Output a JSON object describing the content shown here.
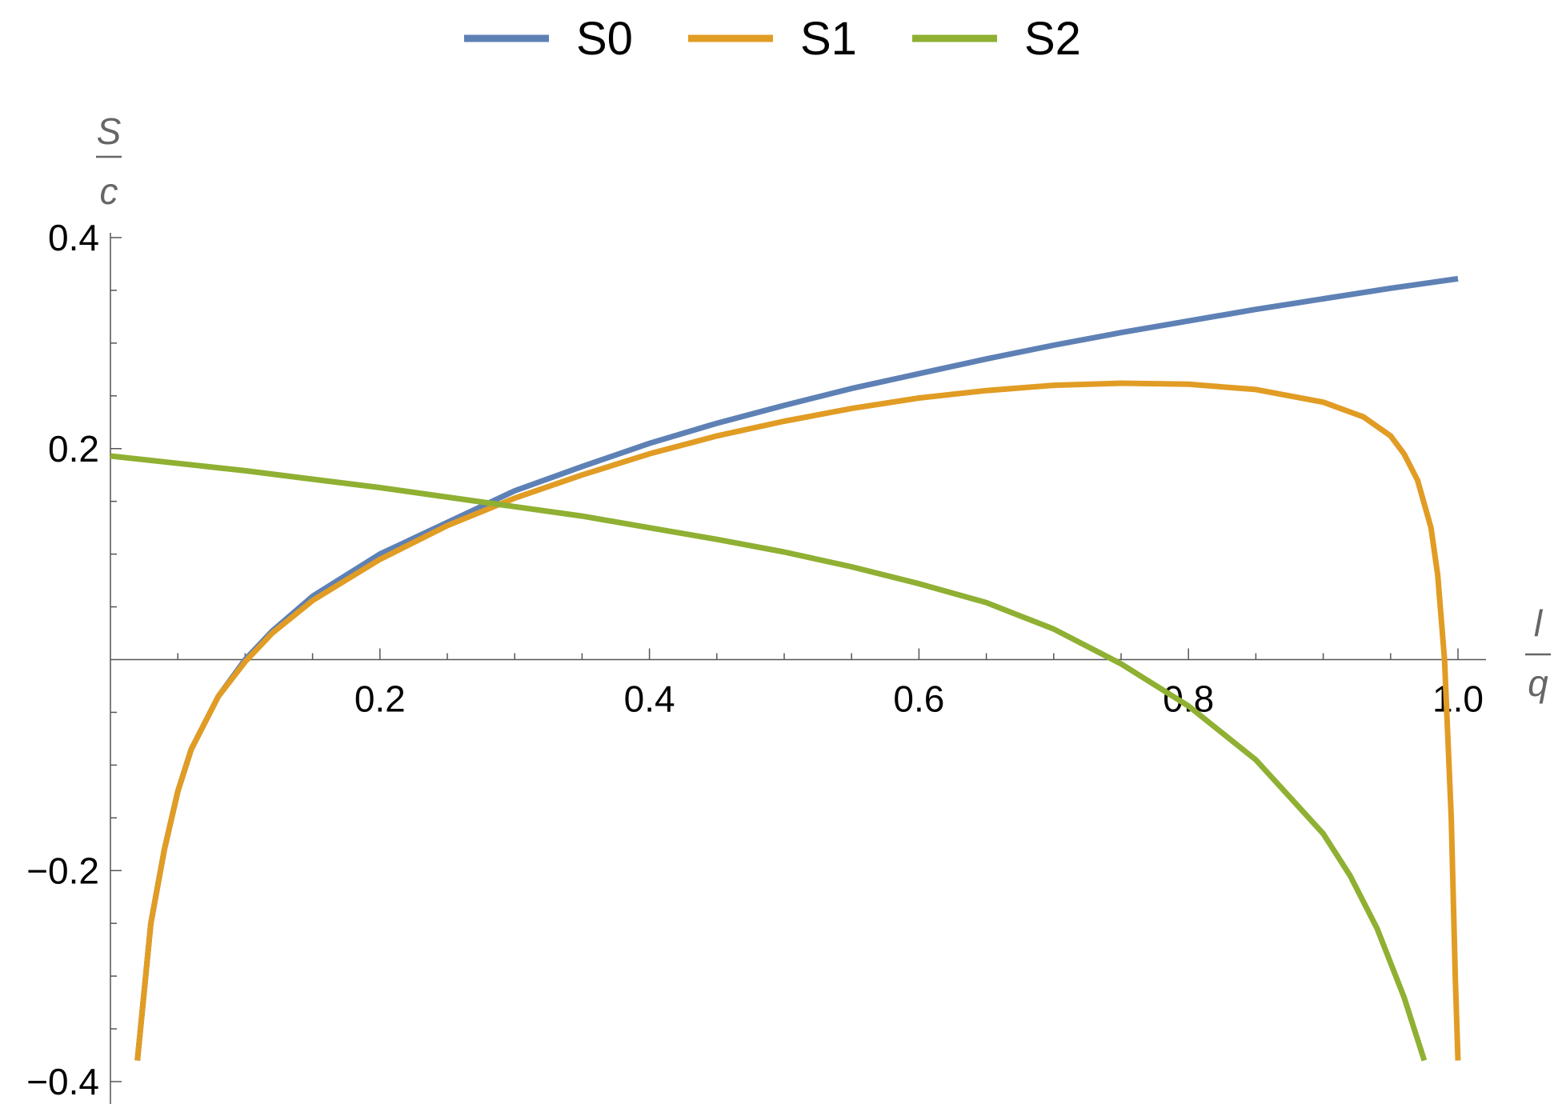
{
  "chart_data": {
    "type": "line",
    "xlabel": {
      "numerator": "l",
      "denominator": "q"
    },
    "ylabel": {
      "numerator": "S",
      "denominator": "c"
    },
    "xlim": [
      0,
      1.0
    ],
    "ylim": [
      -0.4,
      0.4
    ],
    "x_ticks": [
      {
        "value": 0.2,
        "label": "0.2"
      },
      {
        "value": 0.4,
        "label": "0.4"
      },
      {
        "value": 0.6,
        "label": "0.6"
      },
      {
        "value": 0.8,
        "label": "0.8"
      },
      {
        "value": 1.0,
        "label": "1.0"
      }
    ],
    "y_ticks": [
      {
        "value": 0.4,
        "label": "0.4"
      },
      {
        "value": 0.2,
        "label": "0.2"
      },
      {
        "value": -0.2,
        "label": "−0.2"
      },
      {
        "value": -0.4,
        "label": "−0.4"
      }
    ],
    "x_minor_step": 0.05,
    "y_minor_step": 0.05,
    "grid": false,
    "legend_position": "top-center",
    "series": [
      {
        "name": "S0",
        "color": "#5e81b5",
        "points": [
          [
            0.02,
            -0.38
          ],
          [
            0.03,
            -0.25
          ],
          [
            0.04,
            -0.18
          ],
          [
            0.05,
            -0.125
          ],
          [
            0.06,
            -0.085
          ],
          [
            0.08,
            -0.035
          ],
          [
            0.1,
            0.0
          ],
          [
            0.12,
            0.027
          ],
          [
            0.15,
            0.06
          ],
          [
            0.2,
            0.1
          ],
          [
            0.25,
            0.13
          ],
          [
            0.3,
            0.16
          ],
          [
            0.35,
            0.183
          ],
          [
            0.4,
            0.205
          ],
          [
            0.45,
            0.224
          ],
          [
            0.5,
            0.241
          ],
          [
            0.55,
            0.257
          ],
          [
            0.6,
            0.271
          ],
          [
            0.65,
            0.285
          ],
          [
            0.7,
            0.298
          ],
          [
            0.75,
            0.31
          ],
          [
            0.8,
            0.321
          ],
          [
            0.85,
            0.332
          ],
          [
            0.9,
            0.342
          ],
          [
            0.95,
            0.352
          ],
          [
            1.0,
            0.361
          ]
        ]
      },
      {
        "name": "S1",
        "color": "#e19c24",
        "points": [
          [
            0.02,
            -0.38
          ],
          [
            0.03,
            -0.25
          ],
          [
            0.04,
            -0.18
          ],
          [
            0.05,
            -0.125
          ],
          [
            0.06,
            -0.085
          ],
          [
            0.08,
            -0.035
          ],
          [
            0.1,
            -0.002
          ],
          [
            0.12,
            0.025
          ],
          [
            0.15,
            0.056
          ],
          [
            0.2,
            0.095
          ],
          [
            0.25,
            0.127
          ],
          [
            0.3,
            0.153
          ],
          [
            0.35,
            0.175
          ],
          [
            0.4,
            0.195
          ],
          [
            0.45,
            0.212
          ],
          [
            0.5,
            0.226
          ],
          [
            0.55,
            0.238
          ],
          [
            0.6,
            0.248
          ],
          [
            0.65,
            0.255
          ],
          [
            0.7,
            0.26
          ],
          [
            0.75,
            0.262
          ],
          [
            0.8,
            0.261
          ],
          [
            0.85,
            0.256
          ],
          [
            0.9,
            0.244
          ],
          [
            0.93,
            0.23
          ],
          [
            0.95,
            0.212
          ],
          [
            0.96,
            0.195
          ],
          [
            0.97,
            0.17
          ],
          [
            0.98,
            0.125
          ],
          [
            0.985,
            0.08
          ],
          [
            0.99,
            0.0
          ],
          [
            0.995,
            -0.15
          ],
          [
            0.998,
            -0.3
          ],
          [
            1.0,
            -0.38
          ]
        ]
      },
      {
        "name": "S2",
        "color": "#8fb032",
        "points": [
          [
            0.0,
            0.193
          ],
          [
            0.05,
            0.186
          ],
          [
            0.1,
            0.179
          ],
          [
            0.15,
            0.171
          ],
          [
            0.2,
            0.163
          ],
          [
            0.25,
            0.154
          ],
          [
            0.3,
            0.145
          ],
          [
            0.35,
            0.136
          ],
          [
            0.4,
            0.125
          ],
          [
            0.45,
            0.114
          ],
          [
            0.5,
            0.102
          ],
          [
            0.55,
            0.088
          ],
          [
            0.6,
            0.072
          ],
          [
            0.65,
            0.054
          ],
          [
            0.7,
            0.029
          ],
          [
            0.75,
            -0.004
          ],
          [
            0.8,
            -0.044
          ],
          [
            0.85,
            -0.095
          ],
          [
            0.9,
            -0.165
          ],
          [
            0.92,
            -0.205
          ],
          [
            0.94,
            -0.255
          ],
          [
            0.96,
            -0.32
          ],
          [
            0.975,
            -0.38
          ]
        ]
      }
    ]
  }
}
